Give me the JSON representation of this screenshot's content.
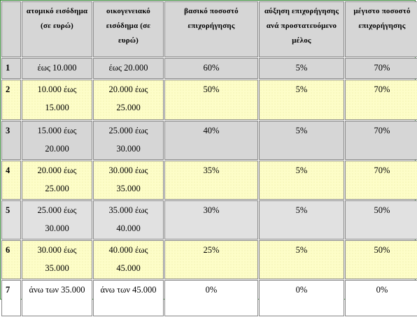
{
  "header": {
    "c0": "",
    "c1": "ατομικό εισόδημα (σε ευρώ)",
    "c2": "οικογενειακό εισόδημα (σε ευρώ)",
    "c3": "βασικό ποσοστό επιχορήγησης",
    "c4": "αύξηση επιχορήγησης ανά προστατευόμενο μέλος",
    "c5": "μέγιστο ποσοστό επιχορήγησης"
  },
  "rows": [
    {
      "n": "1",
      "atomiko": "έως 10.000",
      "oikogeneiako": "έως 20.000",
      "vasiko": "60%",
      "afxisi": "5%",
      "megisto": "70%"
    },
    {
      "n": "2",
      "atomiko": "10.000 έως 15.000",
      "oikogeneiako": "20.000 έως 25.000",
      "vasiko": "50%",
      "afxisi": "5%",
      "megisto": "70%"
    },
    {
      "n": "3",
      "atomiko": "15.000 έως 20.000",
      "oikogeneiako": "25.000 έως 30.000",
      "vasiko": "40%",
      "afxisi": "5%",
      "megisto": "70%"
    },
    {
      "n": "4",
      "atomiko": "20.000 έως 25.000",
      "oikogeneiako": "30.000 έως 35.000",
      "vasiko": "35%",
      "afxisi": "5%",
      "megisto": "70%"
    },
    {
      "n": "5",
      "atomiko": "25.000 έως 30.000",
      "oikogeneiako": "35.000 έως 40.000",
      "vasiko": "30%",
      "afxisi": "5%",
      "megisto": "50%"
    },
    {
      "n": "6",
      "atomiko": "30.000 έως 35.000",
      "oikogeneiako": "40.000 έως 45.000",
      "vasiko": "25%",
      "afxisi": "5%",
      "megisto": "50%"
    },
    {
      "n": "7",
      "atomiko": "άνω των 35.000",
      "oikogeneiako": "άνω των 45.000",
      "vasiko": "0%",
      "afxisi": "0%",
      "megisto": "0%"
    }
  ]
}
